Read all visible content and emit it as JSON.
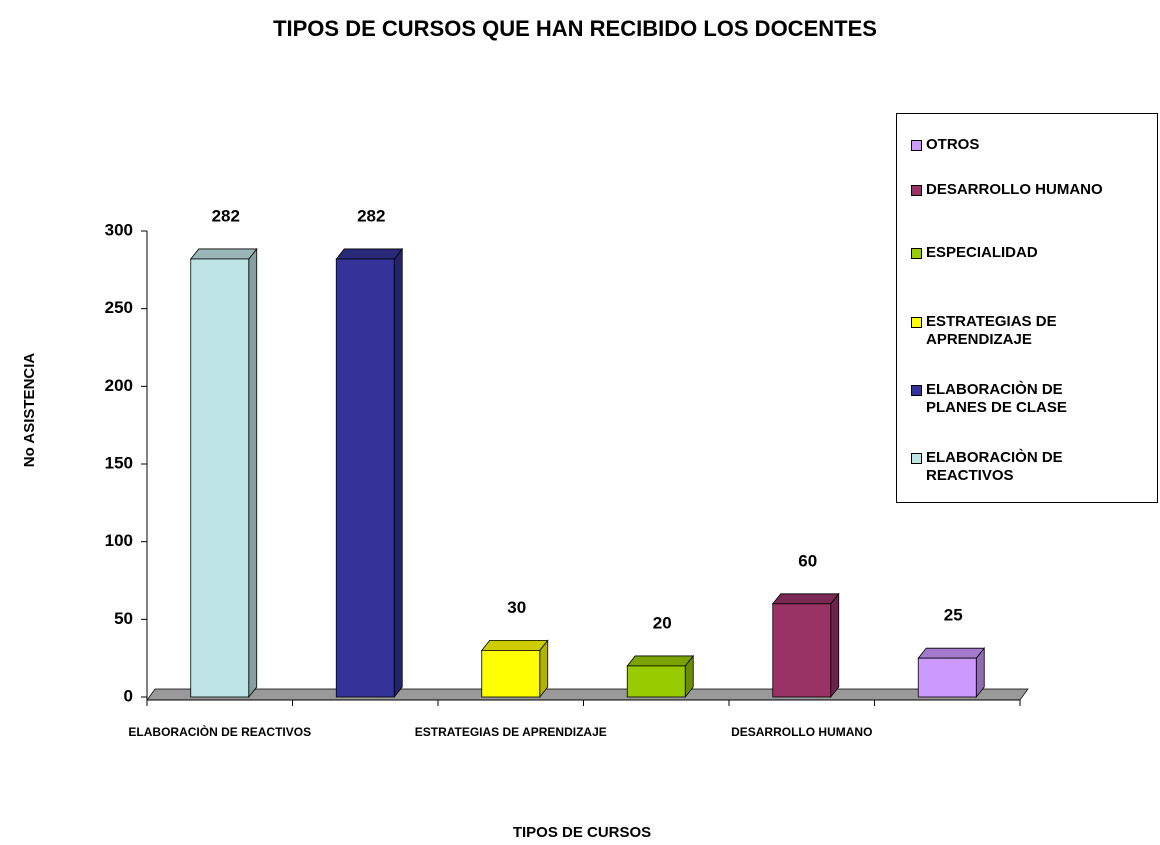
{
  "chart_data": {
    "type": "bar3d",
    "title": "TIPOS DE CURSOS QUE HAN RECIBIDO  LOS DOCENTES",
    "x_label": "TIPOS DE CURSOS",
    "y_label": "No ASISTENCIA",
    "categories": [
      "ELABORACIÒN DE REACTIVOS",
      null,
      "ESTRATEGIAS DE APRENDIZAJE",
      null,
      "DESARROLLO HUMANO",
      null
    ],
    "values": [
      282,
      282,
      30,
      20,
      60,
      25
    ],
    "colors": [
      "#bfe4e6",
      "#333399",
      "#ffff00",
      "#99cc00",
      "#993366",
      "#cc99ff"
    ],
    "legend": [
      "OTROS",
      "DESARROLLO HUMANO",
      "ESPECIALIDAD",
      "ESTRATEGIAS DE APRENDIZAJE",
      "ELABORACIÒN DE PLANES DE CLASE",
      "ELABORACIÒN DE REACTIVOS"
    ],
    "legend_position": "right",
    "ylim": [
      0,
      300
    ],
    "yticks": [
      0,
      50,
      100,
      150,
      200,
      250,
      300
    ]
  }
}
